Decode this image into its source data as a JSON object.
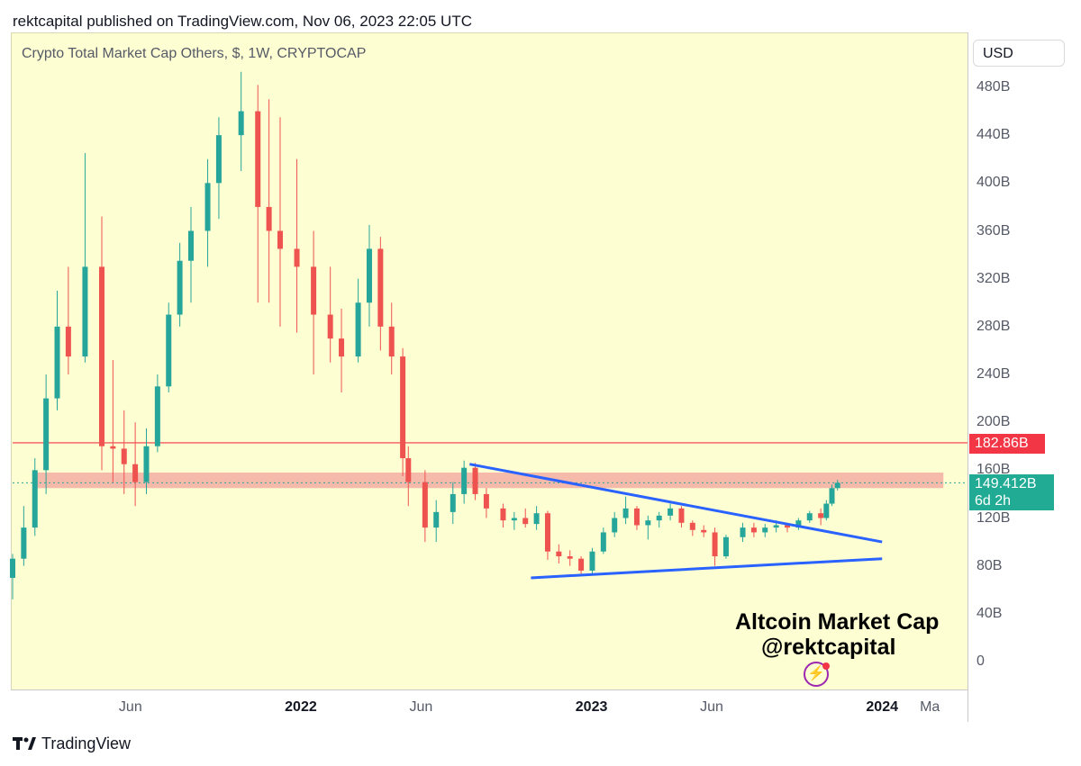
{
  "header": {
    "text": "rektcapital published on TradingView.com, Nov 06, 2023 22:05 UTC"
  },
  "chart_title": "Crypto Total Market Cap Others, $, 1W, CRYPTOCAP",
  "currency_button": "USD",
  "price_badges": {
    "level": "182.86B",
    "last_price": "149.412B",
    "countdown": "6d 2h"
  },
  "annotation": {
    "line1": "Altcoin Market Cap",
    "line2": "@rektcapital"
  },
  "footer": {
    "brand": "TradingView",
    "logo": "tradingview-logo-icon"
  },
  "colors": {
    "background": "#fefed3",
    "up_candle": "#26a69a",
    "down_candle": "#ef5350",
    "trendline": "#2962ff",
    "resistance_line": "#f23645",
    "zone": "#f4a9a0"
  },
  "chart_data": {
    "type": "candlestick",
    "title": "Crypto Total Market Cap Others, $, 1W, CRYPTOCAP",
    "yunit": "B USD",
    "ylim": [
      0,
      480
    ],
    "yticks": [
      "480B",
      "440B",
      "400B",
      "360B",
      "320B",
      "280B",
      "240B",
      "200B",
      "160B",
      "120B",
      "80B",
      "40B",
      "0"
    ],
    "xticks": [
      "Jun",
      "2022",
      "Jun",
      "2023",
      "Jun",
      "2024",
      "Ma"
    ],
    "xticks_bold": [
      "2022",
      "2023",
      "2024"
    ],
    "x_range": [
      "2021-01-04",
      "2024-04-15"
    ],
    "horizontal_lines": [
      {
        "value": 182.86,
        "color": "#f23645",
        "label": "182.86B"
      }
    ],
    "zones": [
      {
        "y_low": 145,
        "y_high": 158,
        "x_start": "2021-02-01",
        "x_end": "2024-03-18"
      }
    ],
    "last_price": {
      "value": 149.412,
      "label": "149.412B",
      "countdown": "6d 2h"
    },
    "trendlines": [
      {
        "name": "descending",
        "points": [
          [
            "2022-08-01",
            165
          ],
          [
            "2024-01-01",
            100
          ]
        ]
      },
      {
        "name": "ascending",
        "points": [
          [
            "2022-10-17",
            70
          ],
          [
            "2024-01-01",
            86
          ]
        ]
      }
    ],
    "series": [
      {
        "values": [
          [
            "2021-01-04",
            70,
            90,
            52,
            86
          ],
          [
            "2021-01-18",
            86,
            130,
            80,
            112
          ],
          [
            "2021-02-01",
            112,
            170,
            105,
            160
          ],
          [
            "2021-02-15",
            160,
            240,
            140,
            220
          ],
          [
            "2021-03-01",
            220,
            310,
            210,
            280
          ],
          [
            "2021-03-15",
            280,
            330,
            240,
            255
          ],
          [
            "2021-04-05",
            255,
            425,
            250,
            330
          ],
          [
            "2021-04-26",
            330,
            372,
            160,
            180
          ],
          [
            "2021-05-10",
            180,
            252,
            150,
            178
          ],
          [
            "2021-05-24",
            178,
            210,
            140,
            165
          ],
          [
            "2021-06-07",
            165,
            200,
            130,
            150
          ],
          [
            "2021-06-21",
            150,
            195,
            140,
            180
          ],
          [
            "2021-07-05",
            180,
            240,
            175,
            230
          ],
          [
            "2021-07-19",
            230,
            300,
            225,
            290
          ],
          [
            "2021-08-02",
            290,
            350,
            280,
            335
          ],
          [
            "2021-08-16",
            335,
            380,
            300,
            360
          ],
          [
            "2021-09-06",
            360,
            420,
            330,
            400
          ],
          [
            "2021-09-20",
            400,
            455,
            370,
            440
          ],
          [
            "2021-10-18",
            440,
            493,
            410,
            460
          ],
          [
            "2021-11-08",
            460,
            482,
            300,
            380
          ],
          [
            "2021-11-22",
            380,
            470,
            300,
            360
          ],
          [
            "2021-12-06",
            360,
            455,
            280,
            345
          ],
          [
            "2021-12-27",
            345,
            420,
            275,
            330
          ],
          [
            "2022-01-17",
            330,
            360,
            240,
            290
          ],
          [
            "2022-02-07",
            290,
            330,
            250,
            270
          ],
          [
            "2022-02-21",
            270,
            295,
            225,
            255
          ],
          [
            "2022-03-14",
            255,
            320,
            250,
            300
          ],
          [
            "2022-03-28",
            300,
            365,
            280,
            345
          ],
          [
            "2022-04-11",
            345,
            355,
            260,
            280
          ],
          [
            "2022-04-25",
            280,
            300,
            240,
            255
          ],
          [
            "2022-05-09",
            255,
            262,
            155,
            170
          ],
          [
            "2022-05-16",
            170,
            180,
            130,
            150
          ],
          [
            "2022-06-06",
            150,
            160,
            100,
            112
          ],
          [
            "2022-06-20",
            112,
            135,
            100,
            125
          ],
          [
            "2022-07-11",
            125,
            150,
            115,
            140
          ],
          [
            "2022-07-25",
            140,
            168,
            132,
            162
          ],
          [
            "2022-08-08",
            162,
            166,
            135,
            140
          ],
          [
            "2022-08-22",
            140,
            145,
            120,
            128
          ],
          [
            "2022-09-12",
            128,
            132,
            112,
            118
          ],
          [
            "2022-09-26",
            118,
            125,
            110,
            120
          ],
          [
            "2022-10-10",
            120,
            128,
            112,
            115
          ],
          [
            "2022-10-24",
            115,
            130,
            110,
            124
          ],
          [
            "2022-11-07",
            124,
            126,
            85,
            92
          ],
          [
            "2022-11-21",
            92,
            98,
            82,
            88
          ],
          [
            "2022-12-05",
            88,
            93,
            80,
            86
          ],
          [
            "2022-12-19",
            86,
            88,
            72,
            76
          ],
          [
            "2023-01-02",
            76,
            95,
            73,
            92
          ],
          [
            "2023-01-16",
            92,
            112,
            90,
            108
          ],
          [
            "2023-01-30",
            108,
            125,
            104,
            120
          ],
          [
            "2023-02-13",
            120,
            138,
            115,
            128
          ],
          [
            "2023-02-27",
            128,
            130,
            110,
            114
          ],
          [
            "2023-03-13",
            114,
            122,
            102,
            118
          ],
          [
            "2023-03-27",
            118,
            125,
            112,
            122
          ],
          [
            "2023-04-10",
            122,
            132,
            118,
            128
          ],
          [
            "2023-04-24",
            128,
            130,
            112,
            116
          ],
          [
            "2023-05-08",
            116,
            118,
            105,
            110
          ],
          [
            "2023-05-22",
            110,
            114,
            104,
            108
          ],
          [
            "2023-06-05",
            108,
            112,
            80,
            88
          ],
          [
            "2023-06-19",
            88,
            106,
            86,
            104
          ],
          [
            "2023-07-10",
            104,
            116,
            100,
            112
          ],
          [
            "2023-07-24",
            112,
            116,
            104,
            108
          ],
          [
            "2023-08-07",
            108,
            115,
            104,
            112
          ],
          [
            "2023-08-21",
            112,
            118,
            108,
            114
          ],
          [
            "2023-09-04",
            114,
            116,
            108,
            112
          ],
          [
            "2023-09-18",
            112,
            120,
            110,
            118
          ],
          [
            "2023-10-02",
            118,
            126,
            116,
            124
          ],
          [
            "2023-10-16",
            124,
            128,
            114,
            120
          ],
          [
            "2023-10-23",
            120,
            135,
            118,
            132
          ],
          [
            "2023-10-30",
            132,
            148,
            130,
            145
          ],
          [
            "2023-11-06",
            145,
            152,
            143,
            149.412
          ]
        ]
      }
    ]
  }
}
